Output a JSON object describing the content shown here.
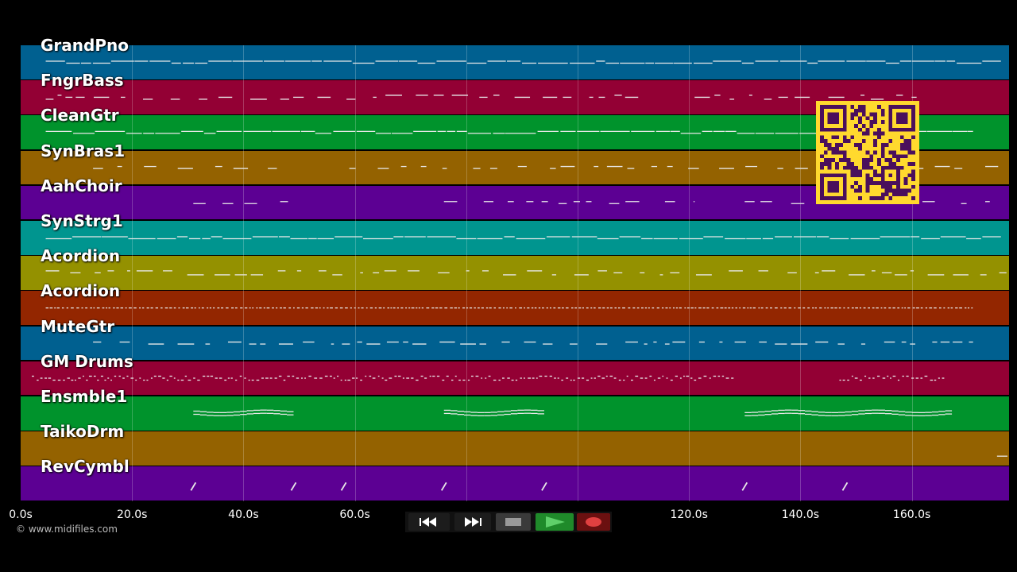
{
  "app": {
    "copyright": "© www.midifiles.com"
  },
  "tracks": [
    {
      "name": "GrandPno",
      "color": "#006090"
    },
    {
      "name": "FngrBass",
      "color": "#930034"
    },
    {
      "name": "CleanGtr",
      "color": "#00932c"
    },
    {
      "name": "SynBras1",
      "color": "#946200"
    },
    {
      "name": "AahChoir",
      "color": "#5c0093"
    },
    {
      "name": "SynStrg1",
      "color": "#00958f"
    },
    {
      "name": "Acordion",
      "color": "#949100"
    },
    {
      "name": "Acordion",
      "color": "#932600"
    },
    {
      "name": "MuteGtr",
      "color": "#006090"
    },
    {
      "name": "GM Drums",
      "color": "#930034"
    },
    {
      "name": "Ensmble1",
      "color": "#00932c"
    },
    {
      "name": "TaikoDrm",
      "color": "#946200"
    },
    {
      "name": "RevCymbl",
      "color": "#5c0093"
    }
  ],
  "timeline": {
    "ticks": [
      "0.0s",
      "20.0s",
      "40.0s",
      "60.0s",
      "",
      "",
      "120.0s",
      "140.0s",
      "160.0s"
    ],
    "tick_seconds": [
      0,
      20,
      40,
      60,
      80,
      100,
      120,
      140,
      160
    ],
    "max_seconds": 177
  },
  "transport": {
    "rewind_icon": "rewind-icon",
    "fastforward_icon": "fast-forward-icon",
    "stop_icon": "stop-icon",
    "play_icon": "play-icon",
    "record_icon": "record-icon"
  },
  "colors": {
    "background": "#000000",
    "note": "#e8e8e8",
    "qr_fg": "#4a0f5c",
    "qr_bg": "#ffd92e",
    "play_button": "#1f8a2a",
    "record_button": "#6b1010"
  }
}
